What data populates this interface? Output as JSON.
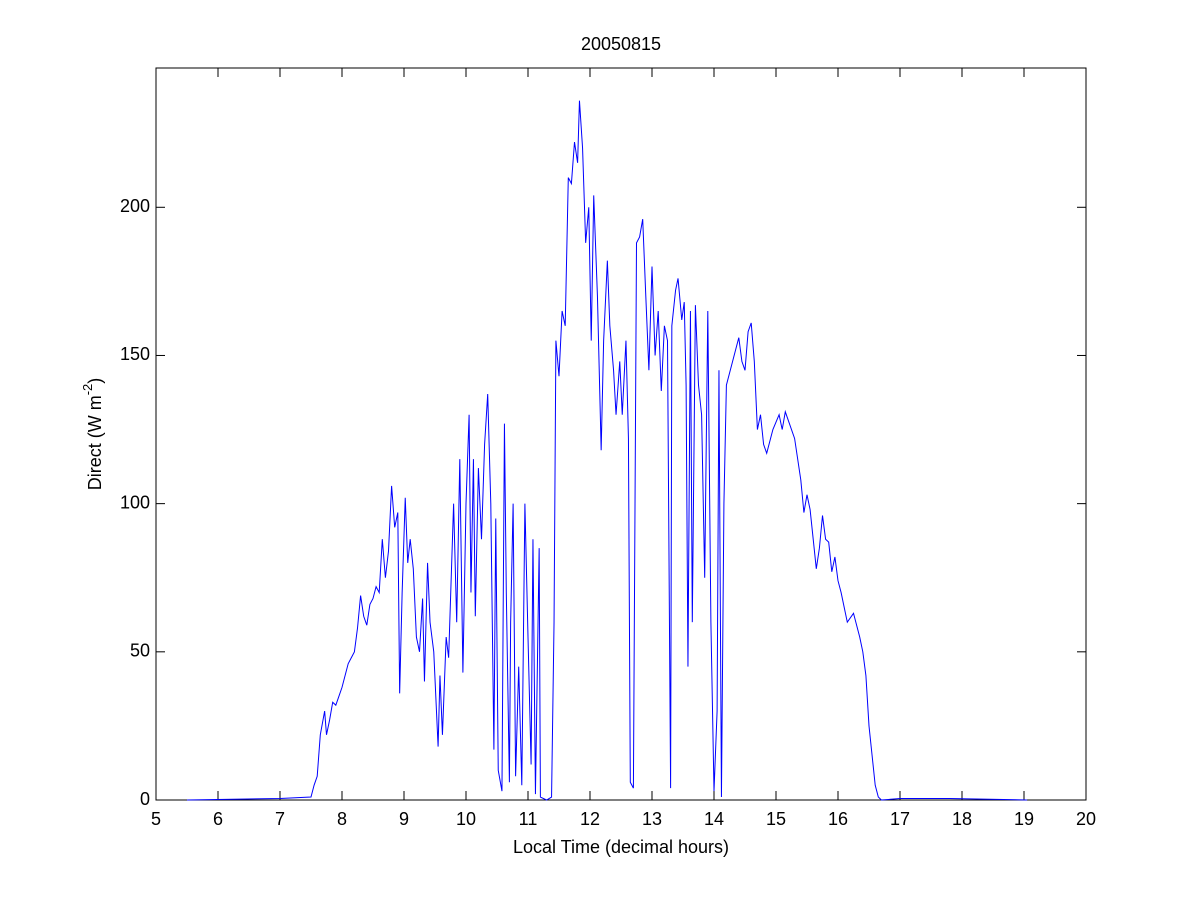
{
  "chart_data": {
    "type": "line",
    "title": "20050815",
    "x_label": "Local Time (decimal hours)",
    "y_label": [
      "Direct (W m",
      "-2",
      ")"
    ],
    "xlim": [
      5,
      20
    ],
    "xticks": [
      5,
      6,
      7,
      8,
      9,
      10,
      11,
      12,
      13,
      14,
      15,
      16,
      17,
      18,
      19,
      20
    ],
    "ylim": [
      0,
      247
    ],
    "yticks": [
      0,
      50,
      100,
      150,
      200
    ],
    "grid": false,
    "series": [
      {
        "color": "#0000ff",
        "x": [
          5.5,
          7.0,
          7.5,
          7.55,
          7.6,
          7.65,
          7.72,
          7.75,
          7.8,
          7.85,
          7.9,
          7.95,
          8.0,
          8.05,
          8.1,
          8.15,
          8.2,
          8.25,
          8.3,
          8.35,
          8.4,
          8.45,
          8.5,
          8.55,
          8.6,
          8.65,
          8.7,
          8.75,
          8.8,
          8.85,
          8.9,
          8.93,
          8.97,
          9.02,
          9.06,
          9.1,
          9.15,
          9.2,
          9.25,
          9.3,
          9.33,
          9.38,
          9.42,
          9.48,
          9.55,
          9.58,
          9.62,
          9.68,
          9.72,
          9.8,
          9.85,
          9.9,
          9.95,
          10.0,
          10.05,
          10.08,
          10.12,
          10.15,
          10.2,
          10.25,
          10.3,
          10.35,
          10.4,
          10.45,
          10.48,
          10.52,
          10.58,
          10.62,
          10.65,
          10.7,
          10.72,
          10.76,
          10.8,
          10.85,
          10.9,
          10.95,
          11.0,
          11.05,
          11.08,
          11.12,
          11.18,
          11.2,
          11.3,
          11.38,
          11.42,
          11.45,
          11.5,
          11.55,
          11.6,
          11.65,
          11.7,
          11.75,
          11.8,
          11.83,
          11.88,
          11.93,
          11.98,
          12.02,
          12.06,
          12.12,
          12.18,
          12.22,
          12.28,
          12.32,
          12.38,
          12.42,
          12.48,
          12.52,
          12.58,
          12.62,
          12.65,
          12.7,
          12.75,
          12.8,
          12.85,
          12.9,
          12.95,
          13.0,
          13.05,
          13.1,
          13.15,
          13.2,
          13.25,
          13.3,
          13.32,
          13.38,
          13.42,
          13.48,
          13.52,
          13.55,
          13.58,
          13.62,
          13.65,
          13.7,
          13.75,
          13.8,
          13.85,
          13.9,
          13.95,
          14.0,
          14.05,
          14.08,
          14.12,
          14.16,
          14.2,
          14.3,
          14.4,
          14.45,
          14.5,
          14.55,
          14.6,
          14.65,
          14.7,
          14.75,
          14.8,
          14.85,
          14.95,
          15.05,
          15.1,
          15.15,
          15.2,
          15.3,
          15.4,
          15.45,
          15.5,
          15.55,
          15.6,
          15.65,
          15.7,
          15.75,
          15.8,
          15.85,
          15.9,
          15.95,
          16.0,
          16.05,
          16.1,
          16.15,
          16.25,
          16.35,
          16.4,
          16.45,
          16.5,
          16.55,
          16.6,
          16.65,
          16.7,
          17.0,
          17.8,
          19.05
        ],
        "values": [
          0,
          0.5,
          1,
          5,
          8,
          22,
          30,
          22,
          27,
          33,
          32,
          35,
          38,
          42,
          46,
          48,
          50,
          58,
          69,
          62,
          59,
          66,
          68,
          72,
          70,
          88,
          75,
          84,
          106,
          92,
          97,
          36,
          70,
          102,
          80,
          88,
          78,
          55,
          50,
          68,
          40,
          80,
          60,
          50,
          18,
          42,
          22,
          55,
          48,
          100,
          60,
          115,
          43,
          100,
          130,
          70,
          115,
          62,
          112,
          88,
          120,
          137,
          100,
          17,
          95,
          10,
          3,
          127,
          70,
          6,
          60,
          100,
          8,
          45,
          5,
          100,
          55,
          12,
          88,
          2,
          85,
          1,
          0,
          1,
          60,
          155,
          143,
          165,
          160,
          210,
          208,
          222,
          215,
          236,
          220,
          188,
          200,
          155,
          204,
          170,
          118,
          155,
          182,
          160,
          145,
          130,
          148,
          130,
          155,
          122,
          6,
          4,
          188,
          190,
          196,
          170,
          145,
          180,
          150,
          165,
          138,
          160,
          155,
          4,
          160,
          172,
          176,
          162,
          168,
          140,
          45,
          165,
          60,
          167,
          140,
          130,
          75,
          165,
          60,
          3,
          30,
          145,
          1,
          100,
          140,
          148,
          156,
          148,
          145,
          158,
          161,
          148,
          125,
          130,
          120,
          117,
          125,
          130,
          125,
          131,
          128,
          122,
          108,
          97,
          103,
          98,
          88,
          78,
          85,
          96,
          88,
          87,
          77,
          82,
          74,
          70,
          65,
          60,
          63,
          55,
          50,
          42,
          25,
          15,
          5,
          1,
          0,
          0.5,
          0.5,
          0
        ]
      }
    ]
  }
}
